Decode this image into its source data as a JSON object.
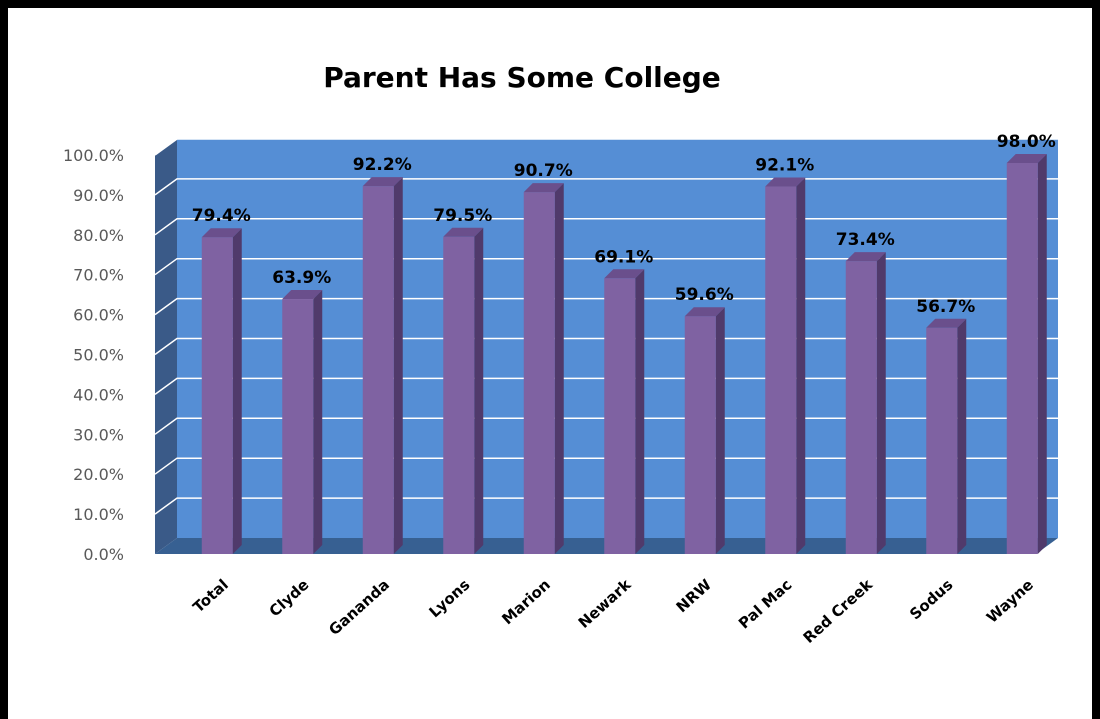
{
  "chart_data": {
    "type": "bar",
    "title": "Parent Has Some College",
    "categories": [
      "Total",
      "Clyde",
      "Gananda",
      "Lyons",
      "Marion",
      "Newark",
      "NRW",
      "Pal Mac",
      "Red Creek",
      "Sodus",
      "Wayne"
    ],
    "values": [
      79.4,
      63.9,
      92.2,
      79.5,
      90.7,
      69.1,
      59.6,
      92.1,
      73.4,
      56.7,
      98.0
    ],
    "value_labels": [
      "79.4%",
      "63.9%",
      "92.2%",
      "79.5%",
      "90.7%",
      "69.1%",
      "59.6%",
      "92.1%",
      "73.4%",
      "56.7%",
      "98.0%"
    ],
    "ylim": [
      0,
      100
    ],
    "yticks": [
      "0.0%",
      "10.0%",
      "20.0%",
      "30.0%",
      "40.0%",
      "50.0%",
      "60.0%",
      "70.0%",
      "80.0%",
      "90.0%",
      "100.0%"
    ],
    "xlabel": "",
    "ylabel": "",
    "grid": true,
    "legend": "none",
    "colors": {
      "bar_front": "#7f62a2",
      "bar_top": "#6a4f8c",
      "bar_side": "#503a6b",
      "back_wall": "#558ed5",
      "side_wall": "#3a5a88",
      "floor": "#376092",
      "gridline": "#ffffff"
    }
  }
}
